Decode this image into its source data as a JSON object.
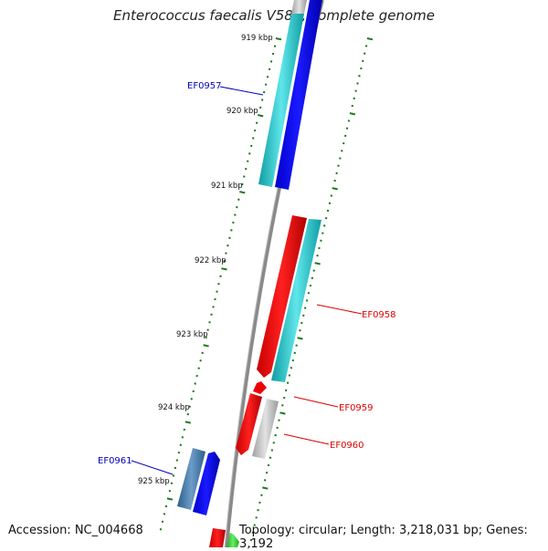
{
  "title": "Enterococcus faecalis V583, complete genome",
  "footer": {
    "accession": "Accession: NC_004668",
    "topology": "Topology: circular; Length: 3,218,031 bp; Genes: 3,192"
  },
  "ticks": [
    "919 kbp",
    "920 kbp",
    "921 kbp",
    "922 kbp",
    "923 kbp",
    "924 kbp",
    "925 kbp"
  ],
  "genes": [
    {
      "label": "EF0957",
      "color": "#0000bb"
    },
    {
      "label": "EF0958",
      "color": "#dd0000"
    },
    {
      "label": "EF0959",
      "color": "#dd0000"
    },
    {
      "label": "EF0960",
      "color": "#dd0000"
    },
    {
      "label": "EF0961",
      "color": "#0000bb"
    }
  ],
  "colors": {
    "backbone": "#8a8a8a",
    "tick": "#1a7a1a",
    "forward_cds": "#ee0000",
    "reverse_cds": "#0000ee",
    "cyan_feature": "#22c8cc",
    "gray_feature": "#b8b8b8",
    "steel_feature": "#4a7fb0",
    "green_feature": "#33cc33"
  }
}
